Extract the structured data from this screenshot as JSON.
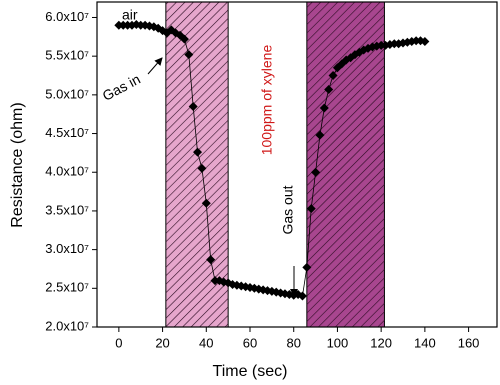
{
  "chart_data": {
    "type": "line",
    "x_label": "Time (sec)",
    "y_label": "Resistance (ohm)",
    "xlim": [
      -10,
      173
    ],
    "ylim": [
      20000000.0,
      62000000.0
    ],
    "xticks": [
      0,
      20,
      40,
      60,
      80,
      100,
      120,
      140,
      160
    ],
    "yticks": [
      {
        "value": 20000000.0,
        "label": "2.0x10⁷"
      },
      {
        "value": 25000000.0,
        "label": "2.5x10⁷"
      },
      {
        "value": 30000000.0,
        "label": "3.0x10⁷"
      },
      {
        "value": 35000000.0,
        "label": "3.5x10⁷"
      },
      {
        "value": 40000000.0,
        "label": "4.0x10⁷"
      },
      {
        "value": 45000000.0,
        "label": "4.5x10⁷"
      },
      {
        "value": 50000000.0,
        "label": "5.0x10⁷"
      },
      {
        "value": 55000000.0,
        "label": "5.5x10⁷"
      },
      {
        "value": 60000000.0,
        "label": "6.0x10⁷"
      }
    ],
    "shaded_regions": [
      {
        "x": [
          21.5,
          50
        ],
        "color": "#e6a6cc"
      },
      {
        "x": [
          86,
          121.5
        ],
        "color": "#a8468f"
      }
    ],
    "annotations": [
      "air",
      "Gas in",
      "100ppm of xylene",
      "Gas out"
    ],
    "series": [
      {
        "color": "#000000",
        "x": [
          0,
          2,
          4,
          6,
          8,
          10,
          12,
          14,
          16,
          18,
          20,
          22,
          24,
          26,
          28,
          30,
          32,
          34,
          36,
          38,
          40,
          42,
          44,
          46,
          48,
          50,
          52,
          54,
          56,
          58,
          60,
          62,
          64,
          66,
          68,
          70,
          72,
          74,
          76,
          78,
          80,
          82,
          84,
          86,
          88,
          90,
          92,
          94,
          96,
          98,
          100,
          102,
          104,
          106,
          108,
          110,
          112,
          114,
          116,
          118,
          120,
          122,
          124,
          126,
          128,
          130,
          132,
          134,
          136,
          138,
          140
        ],
        "values": [
          59000000.0,
          59000000.0,
          59000000.0,
          59000000.0,
          59100000.0,
          59000000.0,
          59000000.0,
          58900000.0,
          58800000.0,
          58600000.0,
          58300000.0,
          58000000.0,
          58400000.0,
          58000000.0,
          57700000.0,
          57200000.0,
          55200000.0,
          48500000.0,
          42600000.0,
          40500000.0,
          36000000.0,
          28700000.0,
          26000000.0,
          26000000.0,
          25800000.0,
          25700000.0,
          25500000.0,
          25400000.0,
          25300000.0,
          25200000.0,
          25100000.0,
          25000000.0,
          24900000.0,
          24800000.0,
          24700000.0,
          24600000.0,
          24500000.0,
          24400000.0,
          24300000.0,
          24200000.0,
          24100000.0,
          24200000.0,
          24000000.0,
          27700000.0,
          35300000.0,
          40000000.0,
          44800000.0,
          48300000.0,
          50700000.0,
          52500000.0,
          53500000.0,
          54000000.0,
          54500000.0,
          54800000.0,
          55200000.0,
          55500000.0,
          55800000.0,
          56000000.0,
          56200000.0,
          56300000.0,
          56400000.0,
          56400000.0,
          56500000.0,
          56600000.0,
          56600000.0,
          56700000.0,
          56800000.0,
          56900000.0,
          57000000.0,
          57000000.0,
          56900000.0
        ]
      }
    ]
  }
}
